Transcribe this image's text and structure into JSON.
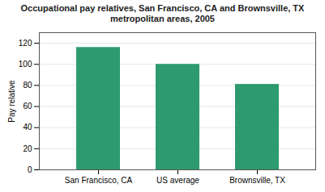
{
  "chart_data": {
    "type": "bar",
    "title": "Occupational pay relatives, San Francisco, CA and Brownsville, TX\nmetropolitan areas, 2005",
    "categories": [
      "San Francisco, CA",
      "US average",
      "Brownsville, TX"
    ],
    "values": [
      116,
      100,
      81
    ],
    "color": "#2E9B6E",
    "ylabel": "Pay relative",
    "ylim": [
      0,
      130
    ],
    "yticks": [
      0,
      20,
      40,
      60,
      80,
      100,
      120
    ],
    "grid": true
  }
}
